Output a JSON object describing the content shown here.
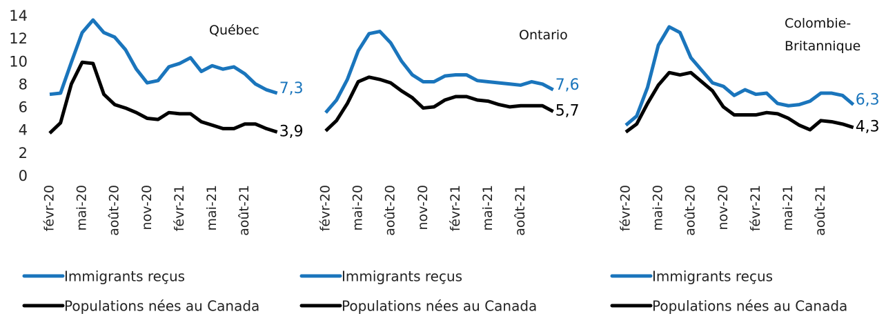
{
  "chart_data": [
    {
      "type": "line",
      "title": "Québec",
      "categories": [
        "févr-20",
        null,
        null,
        "mai-20",
        null,
        null,
        "août-20",
        null,
        null,
        "nov-20",
        null,
        null,
        "févr-21",
        null,
        null,
        "mai-21",
        null,
        null,
        "août-21",
        null,
        null,
        null
      ],
      "ylim": [
        0,
        14
      ],
      "yticks": [
        0,
        2,
        4,
        6,
        8,
        10,
        12,
        14
      ],
      "series": [
        {
          "name": "Immigrants reçus",
          "color": "#1a75bc",
          "values": [
            7.2,
            7.3,
            10.0,
            12.6,
            13.7,
            12.6,
            12.2,
            11.1,
            9.4,
            8.2,
            8.4,
            9.6,
            9.9,
            10.4,
            9.2,
            9.7,
            9.4,
            9.6,
            9.0,
            8.1,
            7.6,
            7.3
          ],
          "value_labels": [
            null,
            null,
            null,
            null,
            null,
            null,
            null,
            null,
            null,
            null,
            null,
            null,
            null,
            null,
            null,
            null,
            null,
            null,
            null,
            null,
            null,
            "7,3"
          ]
        },
        {
          "name": "Populations nées au Canada",
          "color": "#000000",
          "values": [
            3.8,
            4.7,
            8.1,
            10.0,
            9.9,
            7.2,
            6.3,
            6.0,
            5.6,
            5.1,
            5.0,
            5.6,
            5.5,
            5.5,
            4.8,
            4.5,
            4.2,
            4.2,
            4.6,
            4.6,
            4.2,
            3.9
          ],
          "value_labels": [
            null,
            null,
            null,
            null,
            null,
            null,
            null,
            null,
            null,
            null,
            null,
            null,
            null,
            null,
            null,
            null,
            null,
            null,
            null,
            null,
            null,
            "3,9"
          ]
        }
      ]
    },
    {
      "type": "line",
      "title": "Ontario",
      "categories": [
        "févr-20",
        null,
        null,
        "mai-20",
        null,
        null,
        "août-20",
        null,
        null,
        "nov-20",
        null,
        null,
        "févr-21",
        null,
        null,
        "mai-21",
        null,
        null,
        "août-21",
        null,
        null,
        null
      ],
      "ylim": [
        0,
        14
      ],
      "series": [
        {
          "name": "Immigrants reçus",
          "color": "#1a75bc",
          "values": [
            5.6,
            6.7,
            8.5,
            11.0,
            12.5,
            12.7,
            11.7,
            10.1,
            8.9,
            8.3,
            8.3,
            8.8,
            8.9,
            8.9,
            8.4,
            8.3,
            8.2,
            8.1,
            8.0,
            8.3,
            8.1,
            7.6
          ],
          "value_labels": [
            null,
            null,
            null,
            null,
            null,
            null,
            null,
            null,
            null,
            null,
            null,
            null,
            null,
            null,
            null,
            null,
            null,
            null,
            null,
            null,
            null,
            "7,6"
          ]
        },
        {
          "name": "Populations nées au Canada",
          "color": "#000000",
          "values": [
            4.0,
            4.9,
            6.4,
            8.3,
            8.7,
            8.5,
            8.2,
            7.5,
            6.9,
            6.0,
            6.1,
            6.7,
            7.0,
            7.0,
            6.7,
            6.6,
            6.3,
            6.1,
            6.2,
            6.2,
            6.2,
            5.7
          ],
          "value_labels": [
            null,
            null,
            null,
            null,
            null,
            null,
            null,
            null,
            null,
            null,
            null,
            null,
            null,
            null,
            null,
            null,
            null,
            null,
            null,
            null,
            null,
            "5,7"
          ]
        }
      ]
    },
    {
      "type": "line",
      "title": "Colombie-Britannique",
      "categories": [
        "févr-20",
        null,
        null,
        "mai-20",
        null,
        null,
        "août-20",
        null,
        null,
        "nov-20",
        null,
        null,
        "févr-21",
        null,
        null,
        "mai-21",
        null,
        null,
        "août-21",
        null,
        null,
        null
      ],
      "ylim": [
        0,
        14
      ],
      "series": [
        {
          "name": "Immigrants reçus",
          "color": "#1a75bc",
          "values": [
            4.5,
            5.3,
            7.8,
            11.5,
            13.1,
            12.6,
            10.4,
            9.3,
            8.2,
            7.9,
            7.1,
            7.6,
            7.2,
            7.3,
            6.4,
            6.2,
            6.3,
            6.6,
            7.3,
            7.3,
            7.1,
            6.3
          ],
          "value_labels": [
            null,
            null,
            null,
            null,
            null,
            null,
            null,
            null,
            null,
            null,
            null,
            null,
            null,
            null,
            null,
            null,
            null,
            null,
            null,
            null,
            null,
            "6,3"
          ]
        },
        {
          "name": "Populations nées au Canada",
          "color": "#000000",
          "values": [
            3.9,
            4.6,
            6.4,
            8.0,
            9.1,
            8.9,
            9.1,
            8.3,
            7.5,
            6.1,
            5.4,
            5.4,
            5.4,
            5.6,
            5.5,
            5.1,
            4.5,
            4.1,
            4.9,
            4.8,
            4.6,
            4.3
          ],
          "value_labels": [
            null,
            null,
            null,
            null,
            null,
            null,
            null,
            null,
            null,
            null,
            null,
            null,
            null,
            null,
            null,
            null,
            null,
            null,
            null,
            null,
            null,
            "4,3"
          ]
        }
      ]
    }
  ]
}
